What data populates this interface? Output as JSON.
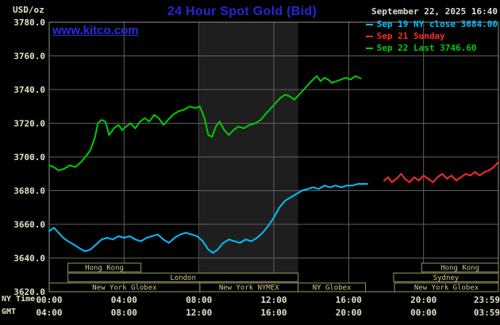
{
  "header": {
    "units_label": "USD/oz",
    "title": "24 Hour Spot Gold (Bid)",
    "datetime": "September 22, 2025 16:40",
    "watermark": "www.kitco.com"
  },
  "axes": {
    "ny_label": "NY Time",
    "gmt_label": "GMT",
    "x_ticks_ny": [
      "00:00",
      "04:00",
      "08:00",
      "12:00",
      "16:00",
      "20:00",
      "23:59"
    ],
    "x_ticks_gmt": [
      "04:00",
      "08:00",
      "12:00",
      "16:00",
      "20:00",
      "00:00",
      "03:59"
    ]
  },
  "colors": {
    "background": "#000000",
    "grid": "#606060",
    "border": "#909090",
    "band": "#1e1e1e",
    "axis_text": "#e5e1c8",
    "title": "#2525d8",
    "link": "#2b2bdd",
    "datetime_text": "#e0ddd0",
    "session_border": "#99985e",
    "session_text": "#d2c88e"
  },
  "sessions": [
    {
      "row": 1,
      "label": "Hong Kong",
      "start": 1.0,
      "end": 4.9
    },
    {
      "row": 1,
      "label": "Hong Kong",
      "start": 19.9,
      "end": 24
    },
    {
      "row": 2,
      "label": "London",
      "start": 1.0,
      "end": 13.3
    },
    {
      "row": 2,
      "label": "Sydney",
      "start": 18.4,
      "end": 24
    },
    {
      "row": 3,
      "label": "New York Globex",
      "start": 0,
      "end": 8.05
    },
    {
      "row": 3,
      "label": "New York NYMEX",
      "start": 8.05,
      "end": 13.3
    },
    {
      "row": 3,
      "label": "NY Globex",
      "start": 13.3,
      "end": 16.9
    },
    {
      "row": 3,
      "label": "New York Globex",
      "start": 18.45,
      "end": 24
    }
  ],
  "chart_data": {
    "type": "line",
    "title": "24 Hour Spot Gold (Bid)",
    "xlabel": "NY Time",
    "ylabel": "USD/oz",
    "x_range": [
      0,
      24
    ],
    "y_range": [
      3620,
      3780
    ],
    "y_ticks": [
      3780,
      3760,
      3740,
      3720,
      3700,
      3680,
      3660,
      3640,
      3620
    ],
    "x_tick_hours": [
      0,
      4,
      8,
      12,
      16,
      20,
      24
    ],
    "grid": true,
    "legend_position": "top-right",
    "band": {
      "name": "New York NYMEX hours",
      "start": 8.05,
      "end": 13.3
    },
    "series": [
      {
        "id": "sep19",
        "name": "Sep 19 NY close 3684.00",
        "color": "#00bfff",
        "points": [
          [
            0,
            3656
          ],
          [
            0.25,
            3658
          ],
          [
            0.5,
            3655
          ],
          [
            0.75,
            3652
          ],
          [
            1.0,
            3650
          ],
          [
            1.3,
            3648
          ],
          [
            1.6,
            3646
          ],
          [
            1.9,
            3644
          ],
          [
            2.2,
            3645
          ],
          [
            2.5,
            3648
          ],
          [
            2.8,
            3651
          ],
          [
            3.1,
            3652
          ],
          [
            3.4,
            3651
          ],
          [
            3.7,
            3653
          ],
          [
            4.0,
            3652
          ],
          [
            4.3,
            3653
          ],
          [
            4.6,
            3651
          ],
          [
            4.9,
            3650
          ],
          [
            5.2,
            3652
          ],
          [
            5.5,
            3653
          ],
          [
            5.8,
            3654
          ],
          [
            6.1,
            3651
          ],
          [
            6.4,
            3649
          ],
          [
            6.7,
            3652
          ],
          [
            7.0,
            3654
          ],
          [
            7.3,
            3655
          ],
          [
            7.6,
            3654
          ],
          [
            7.9,
            3653
          ],
          [
            8.2,
            3650
          ],
          [
            8.5,
            3645
          ],
          [
            8.75,
            3643
          ],
          [
            9.0,
            3645
          ],
          [
            9.3,
            3649
          ],
          [
            9.6,
            3651
          ],
          [
            9.9,
            3650
          ],
          [
            10.2,
            3649
          ],
          [
            10.5,
            3651
          ],
          [
            10.8,
            3650
          ],
          [
            11.1,
            3652
          ],
          [
            11.4,
            3655
          ],
          [
            11.7,
            3659
          ],
          [
            12.0,
            3664
          ],
          [
            12.3,
            3670
          ],
          [
            12.6,
            3674
          ],
          [
            12.9,
            3676
          ],
          [
            13.2,
            3678
          ],
          [
            13.5,
            3680
          ],
          [
            13.8,
            3681
          ],
          [
            14.1,
            3682
          ],
          [
            14.4,
            3681
          ],
          [
            14.7,
            3683
          ],
          [
            15.0,
            3682
          ],
          [
            15.3,
            3683
          ],
          [
            15.6,
            3682
          ],
          [
            15.9,
            3683
          ],
          [
            16.2,
            3683
          ],
          [
            16.5,
            3684
          ],
          [
            17.0,
            3684
          ]
        ]
      },
      {
        "id": "sep21",
        "name": "Sep 21 Sunday",
        "color": "#ff2a2a",
        "points": [
          [
            17.9,
            3686
          ],
          [
            18.1,
            3688
          ],
          [
            18.3,
            3685
          ],
          [
            18.55,
            3687
          ],
          [
            18.8,
            3690
          ],
          [
            19.0,
            3687
          ],
          [
            19.25,
            3685
          ],
          [
            19.5,
            3688
          ],
          [
            19.75,
            3686
          ],
          [
            20.0,
            3689
          ],
          [
            20.25,
            3687
          ],
          [
            20.5,
            3685
          ],
          [
            20.75,
            3688
          ],
          [
            21.0,
            3690
          ],
          [
            21.25,
            3687
          ],
          [
            21.5,
            3689
          ],
          [
            21.75,
            3686
          ],
          [
            22.0,
            3688
          ],
          [
            22.25,
            3690
          ],
          [
            22.5,
            3689
          ],
          [
            22.75,
            3691
          ],
          [
            23.0,
            3689
          ],
          [
            23.25,
            3691
          ],
          [
            23.5,
            3692
          ],
          [
            23.75,
            3694
          ],
          [
            24.0,
            3697
          ]
        ]
      },
      {
        "id": "sep22",
        "name": "Sep 22 Last 3746.60",
        "color": "#00cc00",
        "points": [
          [
            0,
            3695
          ],
          [
            0.25,
            3694
          ],
          [
            0.5,
            3692
          ],
          [
            0.8,
            3693
          ],
          [
            1.1,
            3695
          ],
          [
            1.4,
            3694
          ],
          [
            1.7,
            3697
          ],
          [
            2.0,
            3701
          ],
          [
            2.2,
            3704
          ],
          [
            2.45,
            3712
          ],
          [
            2.6,
            3720
          ],
          [
            2.8,
            3722
          ],
          [
            3.0,
            3721
          ],
          [
            3.2,
            3713
          ],
          [
            3.45,
            3717
          ],
          [
            3.7,
            3719
          ],
          [
            3.9,
            3716
          ],
          [
            4.1,
            3718
          ],
          [
            4.35,
            3720
          ],
          [
            4.6,
            3717
          ],
          [
            4.85,
            3721
          ],
          [
            5.1,
            3723
          ],
          [
            5.35,
            3721
          ],
          [
            5.6,
            3725
          ],
          [
            5.85,
            3723
          ],
          [
            6.1,
            3719
          ],
          [
            6.35,
            3722
          ],
          [
            6.6,
            3725
          ],
          [
            6.9,
            3727
          ],
          [
            7.2,
            3728
          ],
          [
            7.5,
            3730
          ],
          [
            7.8,
            3729
          ],
          [
            8.05,
            3730
          ],
          [
            8.3,
            3723
          ],
          [
            8.5,
            3713
          ],
          [
            8.7,
            3712
          ],
          [
            8.9,
            3718
          ],
          [
            9.1,
            3721
          ],
          [
            9.35,
            3716
          ],
          [
            9.6,
            3713
          ],
          [
            9.85,
            3716
          ],
          [
            10.1,
            3718
          ],
          [
            10.4,
            3717
          ],
          [
            10.7,
            3719
          ],
          [
            11.0,
            3720
          ],
          [
            11.3,
            3722
          ],
          [
            11.6,
            3726
          ],
          [
            11.85,
            3729
          ],
          [
            12.1,
            3732
          ],
          [
            12.35,
            3735
          ],
          [
            12.6,
            3737
          ],
          [
            12.85,
            3736
          ],
          [
            13.1,
            3734
          ],
          [
            13.35,
            3737
          ],
          [
            13.6,
            3740
          ],
          [
            13.85,
            3743
          ],
          [
            14.1,
            3746
          ],
          [
            14.3,
            3748
          ],
          [
            14.5,
            3745
          ],
          [
            14.7,
            3747
          ],
          [
            14.9,
            3746
          ],
          [
            15.1,
            3744
          ],
          [
            15.35,
            3745
          ],
          [
            15.6,
            3746
          ],
          [
            15.85,
            3747
          ],
          [
            16.1,
            3746
          ],
          [
            16.35,
            3748
          ],
          [
            16.65,
            3746.6
          ]
        ]
      }
    ]
  }
}
